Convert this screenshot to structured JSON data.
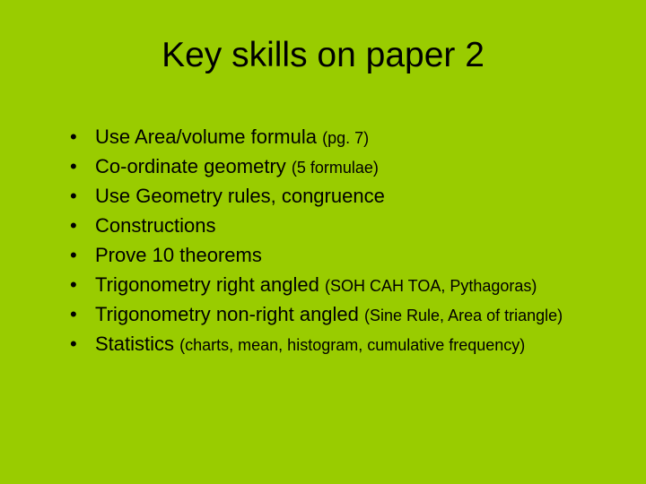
{
  "background_color": "#99cc00",
  "text_color": "#000000",
  "title": {
    "text": "Key skills on paper 2",
    "fontsize": 39,
    "weight": "normal",
    "align": "center"
  },
  "bullets": [
    {
      "main": "Use Area/volume formula ",
      "detail": "(pg. 7)"
    },
    {
      "main": "Co-ordinate geometry ",
      "detail": "(5 formulae)"
    },
    {
      "main": "Use Geometry rules, congruence",
      "detail": ""
    },
    {
      "main": "Constructions",
      "detail": ""
    },
    {
      "main": "Prove 10 theorems",
      "detail": ""
    },
    {
      "main": "Trigonometry right angled ",
      "detail": "(SOH CAH TOA, Pythagoras)"
    },
    {
      "main": "Trigonometry non-right angled ",
      "detail": "(Sine Rule, Area of triangle)"
    },
    {
      "main": "Statistics ",
      "detail": "(charts, mean, histogram, cumulative frequency)"
    }
  ],
  "bullet_fontsize_main": 22,
  "bullet_fontsize_detail": 18,
  "font_family": "Arial"
}
